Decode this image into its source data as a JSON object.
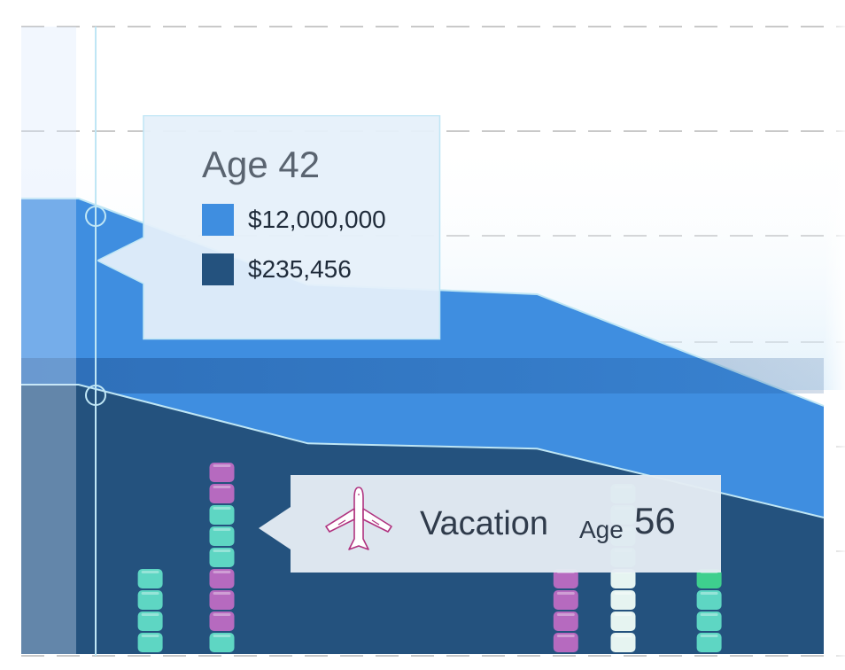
{
  "chart_data": {
    "type": "area",
    "x_label": "Age",
    "series": [
      {
        "key": "total",
        "values": [
          [
            40,
            12000000
          ],
          [
            42,
            12000000
          ],
          [
            50,
            9300000
          ],
          [
            58,
            9000000
          ],
          [
            68,
            5500000
          ]
        ]
      },
      {
        "key": "base",
        "values": [
          [
            40,
            235456
          ],
          [
            42,
            235456
          ],
          [
            50,
            180000
          ],
          [
            58,
            175000
          ],
          [
            68,
            110000
          ]
        ]
      }
    ],
    "event_bars": [
      {
        "age": 44.5,
        "segments": [
          "teal",
          "teal",
          "teal",
          "teal"
        ]
      },
      {
        "age": 47,
        "segments": [
          "teal",
          "purple",
          "purple",
          "purple",
          "teal",
          "teal",
          "teal",
          "purple",
          "purple"
        ]
      },
      {
        "age": 59,
        "segments": [
          "purple",
          "purple",
          "purple",
          "purple"
        ]
      },
      {
        "age": 61,
        "segments": [
          "pale",
          "pale",
          "pale",
          "pale",
          "teal",
          "teal",
          "teal",
          "teal"
        ]
      },
      {
        "age": 64,
        "segments": [
          "teal",
          "teal",
          "teal",
          "green"
        ]
      }
    ],
    "colors": {
      "total": "#3f8ee0",
      "base": "#24527e",
      "band": "#1d4f8f",
      "teal": "#5ed6c3",
      "purple": "#b66abf",
      "pale": "#e6f4f1",
      "green": "#3ecf8e",
      "line": "#bfe6f5"
    }
  },
  "tooltip": {
    "age_label": "Age 42",
    "items": [
      {
        "value": "$12,000,000",
        "color": "#3f8ee0"
      },
      {
        "value": "$235,456",
        "color": "#24527e"
      }
    ]
  },
  "event": {
    "icon": "airplane-icon",
    "label": "Vacation",
    "age_word": "Age",
    "age_value": "56"
  }
}
